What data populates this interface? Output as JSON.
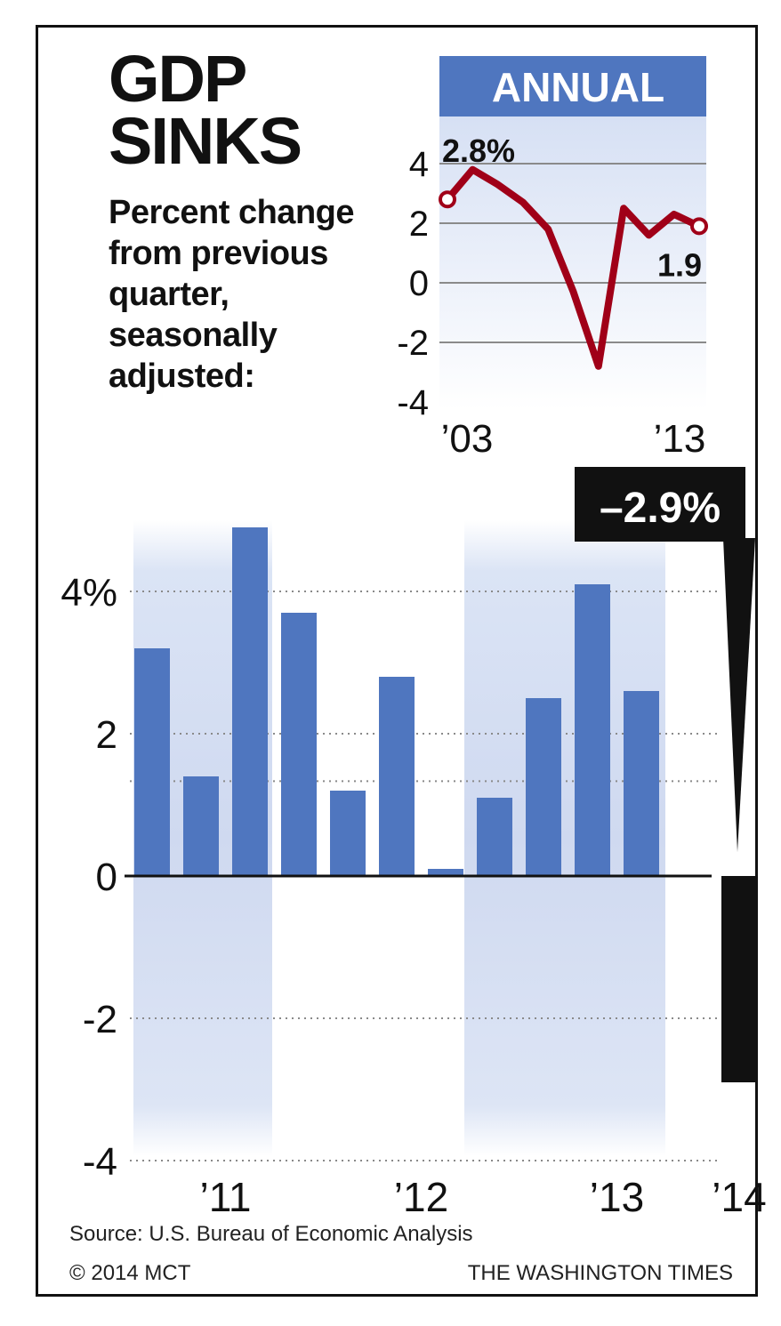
{
  "headline": [
    "GDP",
    "SINKS"
  ],
  "subtitle": "Percent change from previous quarter, seasonally adjusted:",
  "source": "Source: U.S. Bureau of Economic Analysis",
  "credit": "© 2014 MCT",
  "publisher": "THE WASHINGTON TIMES",
  "colors": {
    "bar": "#4f76bf",
    "negative_bar": "#111111",
    "line": "#a00018",
    "annual_header": "#4f76bf",
    "shade": "#d6e0f4"
  },
  "chart_data": [
    {
      "type": "line",
      "title": "ANNUAL",
      "x": [
        2003,
        2004,
        2005,
        2006,
        2007,
        2008,
        2009,
        2010,
        2011,
        2012,
        2013
      ],
      "values": [
        2.8,
        3.8,
        3.3,
        2.7,
        1.8,
        -0.3,
        -2.8,
        2.5,
        1.6,
        2.3,
        1.9
      ],
      "xtick_labels": [
        "’03",
        "’13"
      ],
      "yticks": [
        4,
        2,
        0,
        -2,
        -4
      ],
      "ytick_labels": [
        "4",
        "2",
        "0",
        "-2",
        "-4"
      ],
      "ylim": [
        -4,
        4
      ],
      "annotations": [
        {
          "label": "2.8%",
          "x": 2003,
          "y": 2.8
        },
        {
          "label": "1.9",
          "x": 2013,
          "y": 1.9
        }
      ],
      "grid": true
    },
    {
      "type": "bar",
      "categories": [
        "2011 Q1",
        "2011 Q2",
        "2011 Q3",
        "2011 Q4",
        "2012 Q1",
        "2012 Q2",
        "2012 Q3",
        "2012 Q4",
        "2013 Q1",
        "2013 Q2",
        "2013 Q3",
        "2013 Q4",
        "2014 Q1"
      ],
      "values": [
        3.2,
        1.4,
        4.9,
        3.7,
        1.2,
        2.8,
        0.1,
        1.1,
        2.5,
        4.1,
        2.6,
        0.0,
        -2.9
      ],
      "highlight": {
        "label": "–2.9%",
        "value": -2.9
      },
      "yticks": [
        4,
        2,
        0,
        -2,
        -4
      ],
      "ytick_labels": [
        "4%",
        "2",
        "0",
        "-2",
        "-4"
      ],
      "ylim": [
        -4,
        5
      ],
      "year_labels": [
        "’11",
        "’12",
        "’13",
        "’14"
      ],
      "grid": true
    }
  ]
}
